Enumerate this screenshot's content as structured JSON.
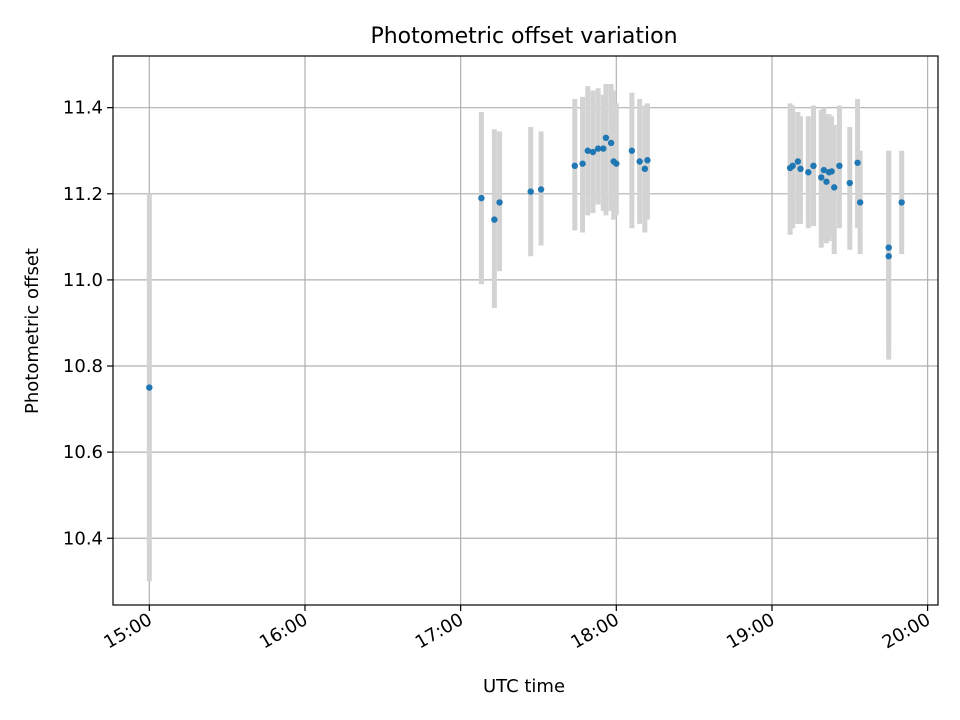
{
  "chart_data": {
    "type": "scatter",
    "title": "Photometric offset variation",
    "xlabel": "UTC time",
    "ylabel": "Photometric offset",
    "xlim": [
      "14:46",
      "20:04"
    ],
    "ylim": [
      10.245,
      11.52
    ],
    "x_ticks": [
      "15:00",
      "16:00",
      "17:00",
      "18:00",
      "19:00",
      "20:00"
    ],
    "y_ticks": [
      "10.4",
      "10.6",
      "10.8",
      "11.0",
      "11.2",
      "11.4"
    ],
    "grid": true,
    "point_color": "#1f77b4",
    "errorbar_color": "#d3d3d3",
    "series": [
      {
        "x": [
          "15:00",
          "17:08",
          "17:13",
          "17:15",
          "17:27",
          "17:31",
          "17:44",
          "17:47",
          "17:49",
          "17:51",
          "17:53",
          "17:55",
          "17:56",
          "17:58",
          "17:59",
          "18:00",
          "18:06",
          "18:09",
          "18:11",
          "18:12",
          "19:07",
          "19:08",
          "19:10",
          "19:11",
          "19:14",
          "19:16",
          "19:19",
          "19:20",
          "19:21",
          "19:22",
          "19:23",
          "19:24",
          "19:26",
          "19:30",
          "19:33",
          "19:34",
          "19:45",
          "19:45",
          "19:50"
        ],
        "y": [
          10.75,
          11.19,
          11.14,
          11.18,
          11.205,
          11.21,
          11.265,
          11.27,
          11.3,
          11.297,
          11.305,
          11.305,
          11.33,
          11.318,
          11.275,
          11.27,
          11.3,
          11.275,
          11.258,
          11.278,
          11.26,
          11.265,
          11.275,
          11.258,
          11.25,
          11.265,
          11.238,
          11.255,
          11.228,
          11.25,
          11.252,
          11.215,
          11.265,
          11.225,
          11.272,
          11.18,
          11.075,
          11.055,
          11.18
        ],
        "err_low": [
          10.3,
          10.99,
          10.935,
          11.02,
          11.055,
          11.08,
          11.115,
          11.11,
          11.15,
          11.155,
          11.175,
          11.16,
          11.15,
          11.16,
          11.14,
          11.15,
          11.12,
          11.13,
          11.11,
          11.14,
          11.105,
          11.12,
          11.13,
          11.13,
          11.12,
          11.125,
          11.075,
          11.095,
          11.085,
          11.09,
          11.1,
          11.06,
          11.12,
          11.07,
          11.12,
          11.06,
          10.815,
          10.855,
          11.06
        ],
        "err_high": [
          11.2,
          11.39,
          11.35,
          11.345,
          11.355,
          11.345,
          11.42,
          11.425,
          11.45,
          11.44,
          11.445,
          11.43,
          11.455,
          11.455,
          11.44,
          11.41,
          11.435,
          11.42,
          11.405,
          11.41,
          11.41,
          11.405,
          11.39,
          11.38,
          11.38,
          11.405,
          11.395,
          11.4,
          11.38,
          11.385,
          11.38,
          11.36,
          11.405,
          11.355,
          11.42,
          11.3,
          11.3,
          11.3,
          11.3
        ]
      }
    ]
  }
}
